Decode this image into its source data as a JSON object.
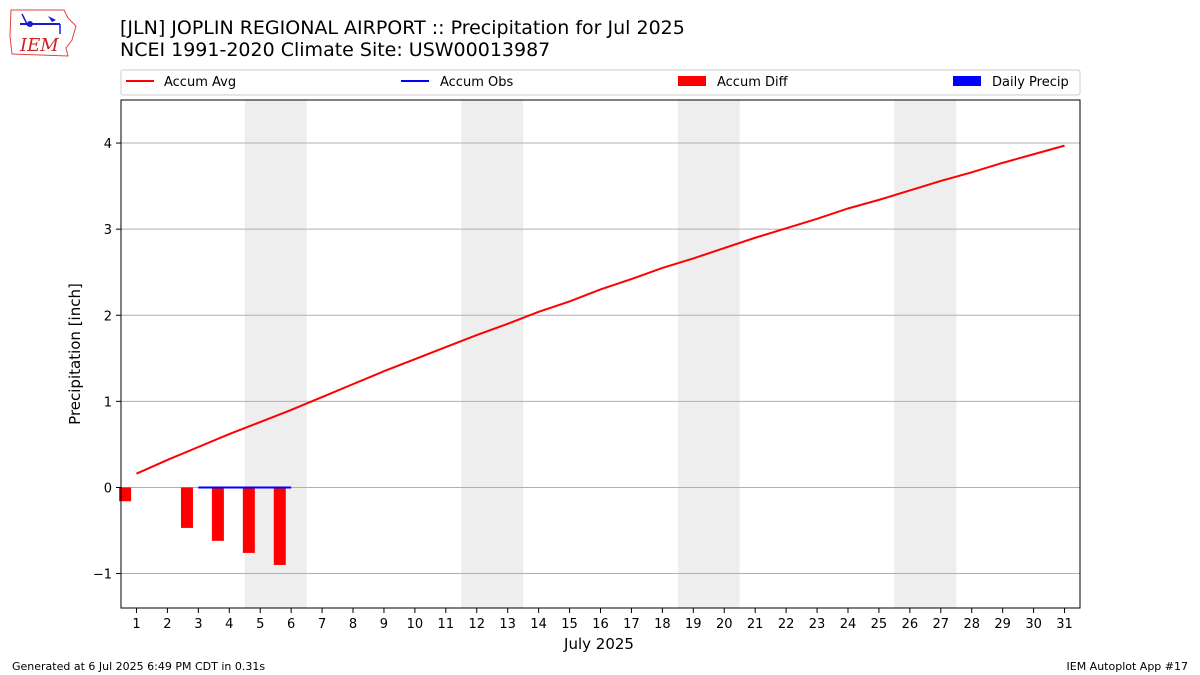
{
  "header": {
    "title_line1": "[JLN] JOPLIN REGIONAL AIRPORT :: Precipitation for Jul 2025",
    "title_line2": "NCEI 1991-2020 Climate Site: USW00013987",
    "logo_text": "IEM"
  },
  "footer": {
    "left": "Generated at 6 Jul 2025 6:49 PM CDT in 0.31s",
    "right": "IEM Autoplot App #17"
  },
  "colors": {
    "accum_avg": "#ff0000",
    "accum_obs": "#0000ff",
    "accum_diff": "#ff0000",
    "daily_precip": "#0000ff",
    "weekend_shade": "#eeeeee",
    "grid": "#b0b0b0"
  },
  "chart_data": {
    "type": "line",
    "xlabel": "July 2025",
    "ylabel": "Precipitation [inch]",
    "xlim": [
      0.5,
      31.5
    ],
    "ylim": [
      -1.4,
      4.5
    ],
    "yticks": [
      -1,
      0,
      1,
      2,
      3,
      4
    ],
    "ytick_labels": [
      "−1",
      "0",
      "1",
      "2",
      "3",
      "4"
    ],
    "x": [
      1,
      2,
      3,
      4,
      5,
      6,
      7,
      8,
      9,
      10,
      11,
      12,
      13,
      14,
      15,
      16,
      17,
      18,
      19,
      20,
      21,
      22,
      23,
      24,
      25,
      26,
      27,
      28,
      29,
      30,
      31
    ],
    "grid": "horizontal",
    "legend_position": "top",
    "weekend_shading": [
      [
        5,
        6
      ],
      [
        12,
        13
      ],
      [
        19,
        20
      ],
      [
        26,
        27
      ]
    ],
    "legend": [
      "Accum Avg",
      "Accum Obs",
      "Accum Diff",
      "Daily Precip"
    ],
    "series": [
      {
        "name": "Accum Avg",
        "type": "line",
        "x": [
          1,
          2,
          3,
          4,
          5,
          6,
          7,
          8,
          9,
          10,
          11,
          12,
          13,
          14,
          15,
          16,
          17,
          18,
          19,
          20,
          21,
          22,
          23,
          24,
          25,
          26,
          27,
          28,
          29,
          30,
          31
        ],
        "values": [
          0.16,
          0.32,
          0.47,
          0.62,
          0.76,
          0.9,
          1.05,
          1.2,
          1.35,
          1.49,
          1.63,
          1.77,
          1.9,
          2.04,
          2.16,
          2.3,
          2.42,
          2.55,
          2.66,
          2.78,
          2.9,
          3.01,
          3.12,
          3.24,
          3.34,
          3.45,
          3.56,
          3.66,
          3.77,
          3.87,
          3.97
        ]
      },
      {
        "name": "Accum Obs",
        "type": "line",
        "x": [
          3,
          4,
          5,
          6
        ],
        "values": [
          0.0,
          0.0,
          0.0,
          0.0
        ]
      },
      {
        "name": "Accum Diff",
        "type": "bar",
        "x": [
          1,
          3,
          4,
          5,
          6
        ],
        "values": [
          -0.16,
          -0.47,
          -0.62,
          -0.76,
          -0.9
        ]
      },
      {
        "name": "Daily Precip",
        "type": "bar",
        "x": [],
        "values": []
      }
    ]
  }
}
